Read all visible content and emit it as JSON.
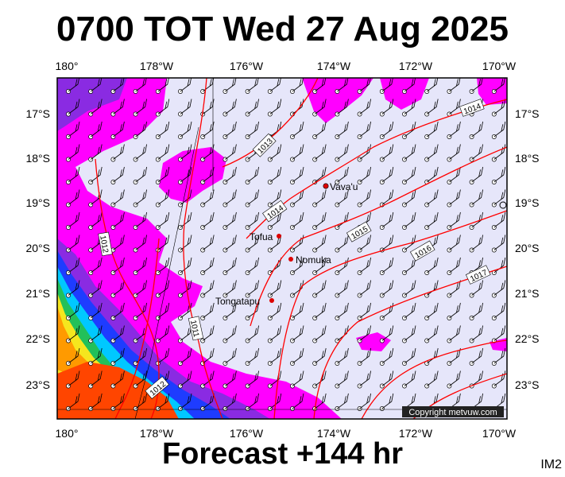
{
  "title": "0700 TOT Wed 27 Aug 2025",
  "footer": "Forecast +144 hr",
  "corner_label": "IM2",
  "copyright": "Copyright metvuw.com",
  "lon_labels": [
    "180°",
    "178°W",
    "176°W",
    "174°W",
    "172°W",
    "170°W"
  ],
  "lat_labels": [
    "17°S",
    "18°S",
    "19°S",
    "20°S",
    "21°S",
    "22°S",
    "23°S"
  ],
  "places": [
    {
      "name": "Vava'u"
    },
    {
      "name": "Tofua"
    },
    {
      "name": "Nomuka"
    },
    {
      "name": "Tongatapu"
    }
  ],
  "isobars": [
    {
      "label": "1012"
    },
    {
      "label": "1012"
    },
    {
      "label": "1013"
    },
    {
      "label": "1014"
    },
    {
      "label": "1014"
    },
    {
      "label": "1015"
    },
    {
      "label": "1016"
    },
    {
      "label": "1017"
    },
    {
      "label": "1011"
    }
  ],
  "colors": {
    "background_fill": "#e6e6fa",
    "magenta": "#ff00ff",
    "isobar": "#ff0000",
    "place_dot": "#dd0000"
  }
}
